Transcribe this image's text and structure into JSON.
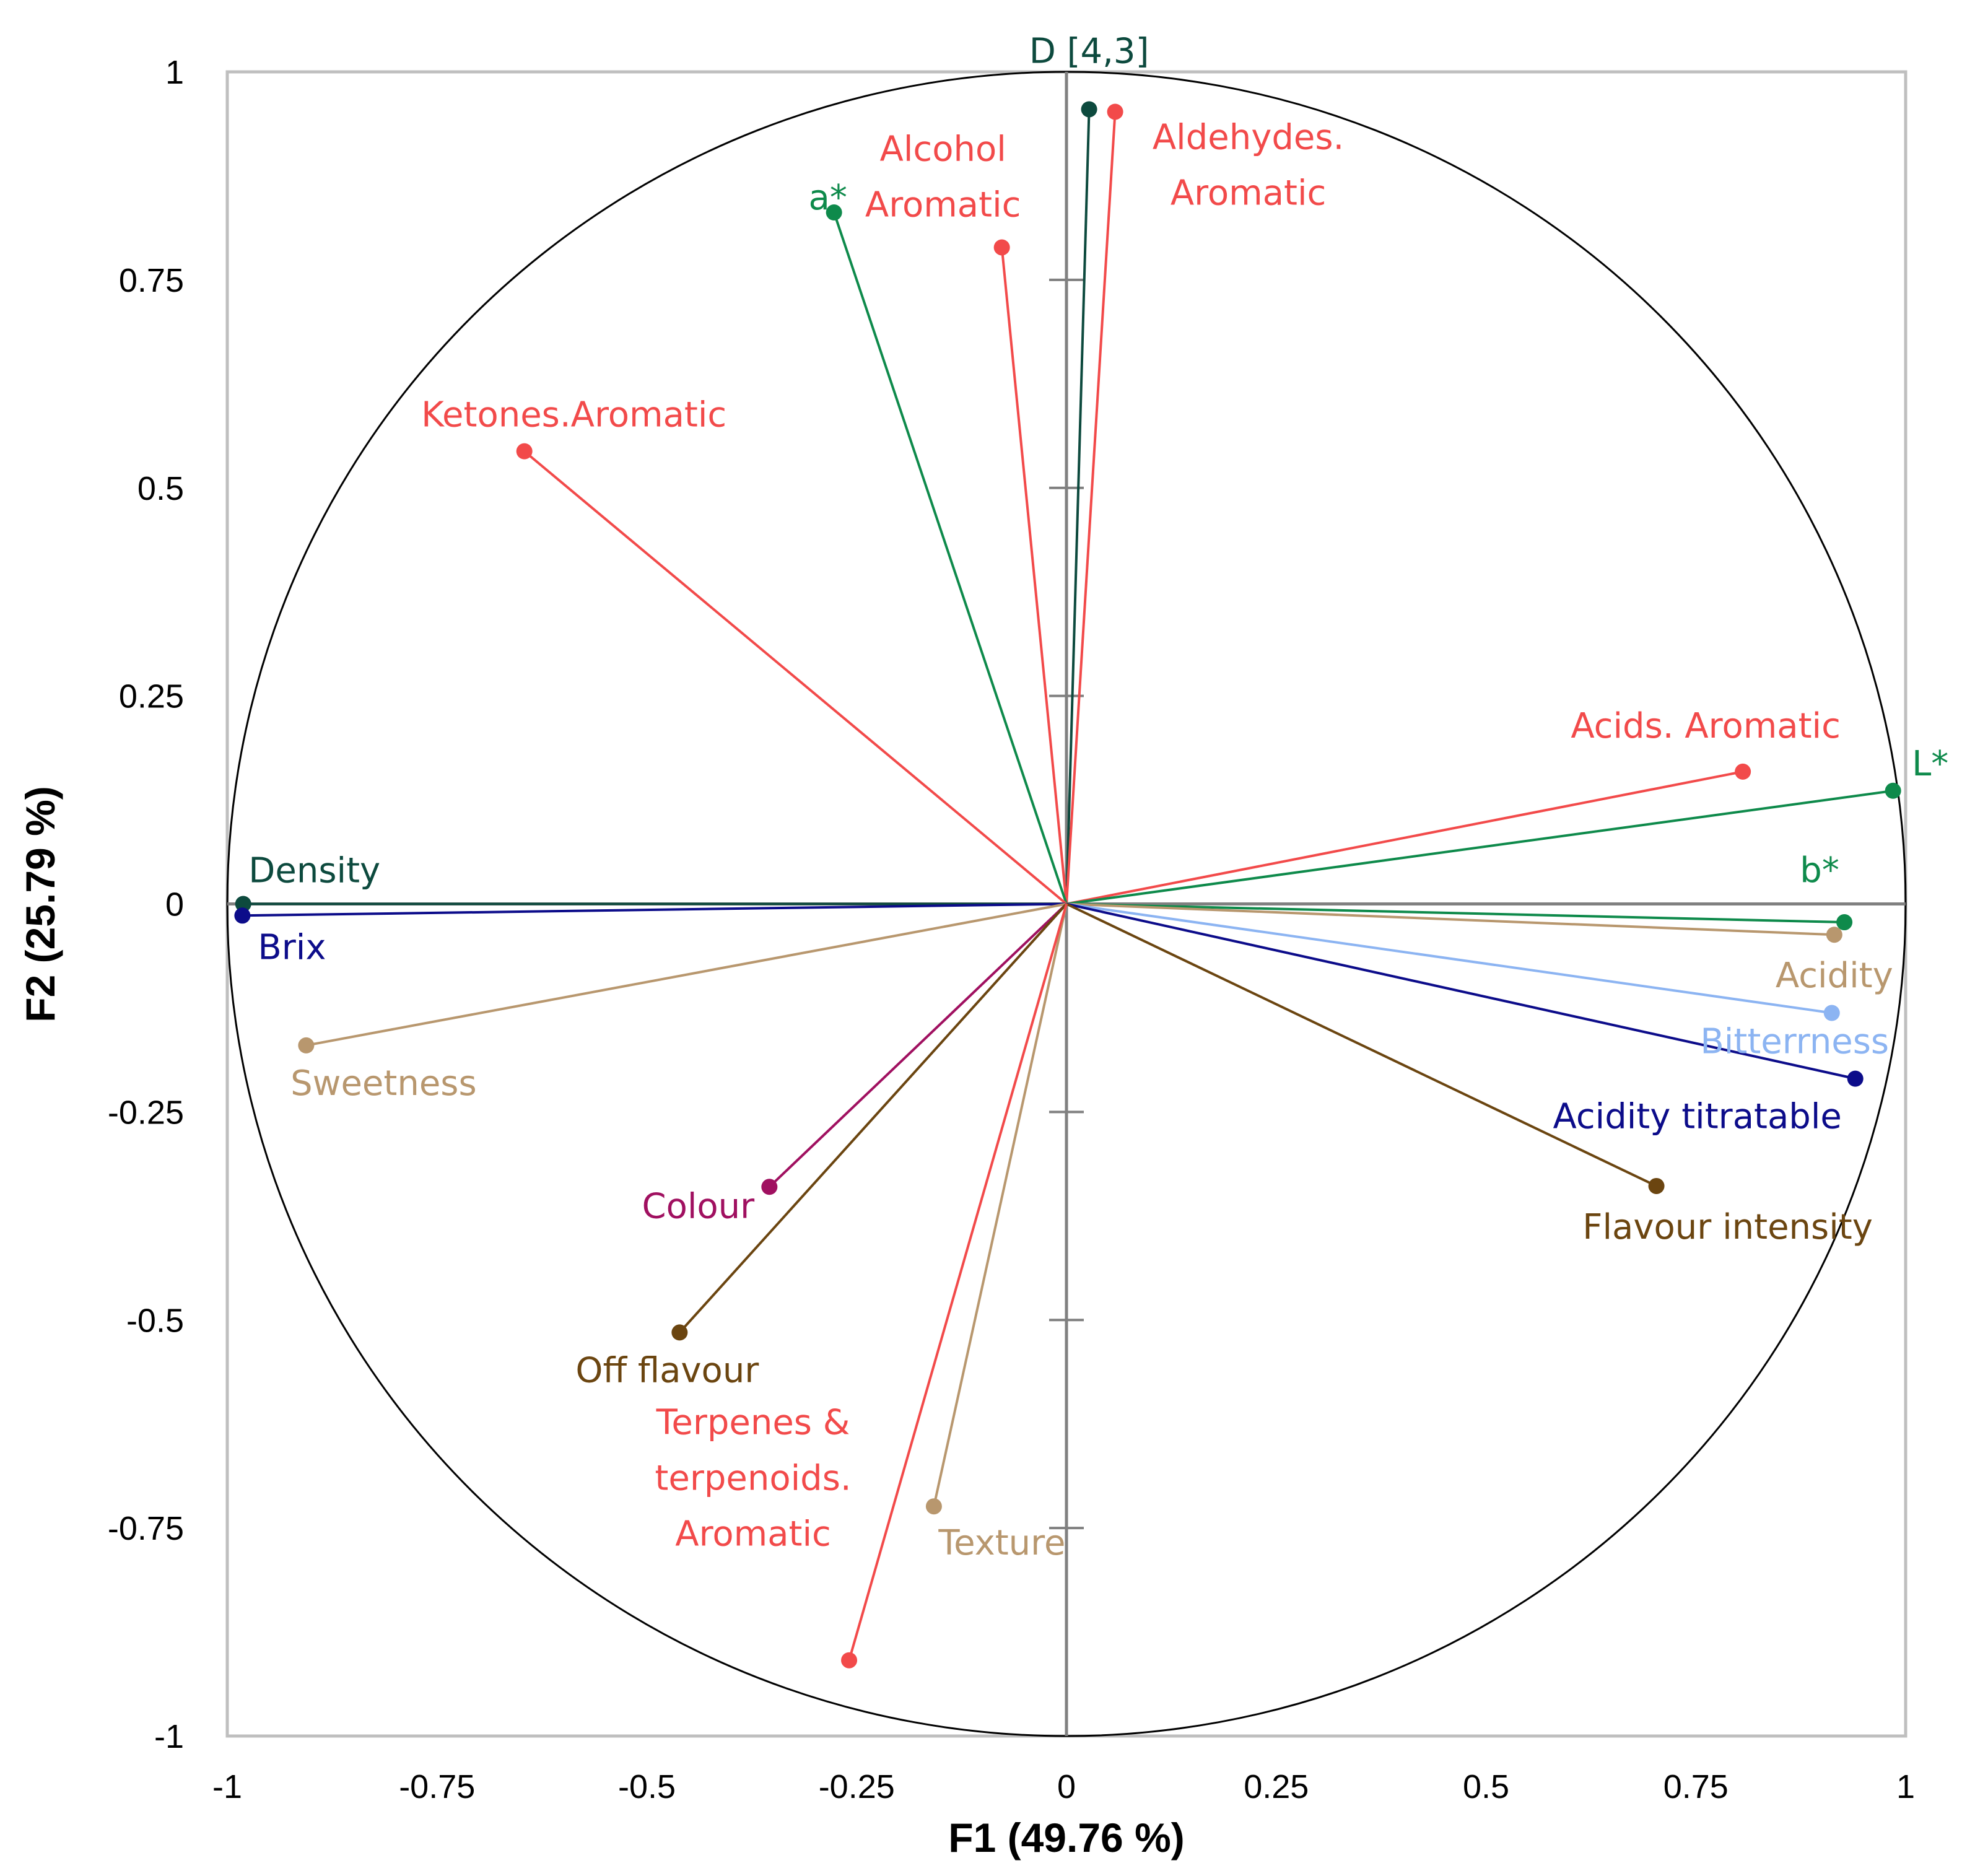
{
  "chart_data": {
    "type": "scatter",
    "subtype": "correlation-circle",
    "title": "",
    "xlabel": "F1 (49.76 %)",
    "ylabel": "F2 (25.79 %)",
    "xlim": [
      -1,
      1
    ],
    "ylim": [
      -1,
      1
    ],
    "xticks": [
      "-1",
      "-0.75",
      "-0.5",
      "-0.25",
      "0",
      "0.25",
      "0.5",
      "0.75",
      "1"
    ],
    "yticks": [
      "-1",
      "-0.75",
      "-0.5",
      "-0.25",
      "0",
      "0.25",
      "0.5",
      "0.75",
      "1"
    ],
    "grid": false,
    "unit_circle": true,
    "variables": [
      {
        "name": "D [4,3]",
        "x": 0.027,
        "y": 0.955,
        "color": "#0d4a3e",
        "label": [
          "D [4,3]"
        ]
      },
      {
        "name": "Aldehydes. Aromatic",
        "x": 0.058,
        "y": 0.952,
        "color": "#f24a4a",
        "label": [
          "Aldehydes.",
          "Aromatic"
        ]
      },
      {
        "name": "Alcohol Aromatic",
        "x": -0.077,
        "y": 0.789,
        "color": "#f24a4a",
        "label": [
          "Alcohol",
          "Aromatic"
        ]
      },
      {
        "name": "a*",
        "x": -0.277,
        "y": 0.831,
        "color": "#0e8a4b",
        "label": [
          "a*"
        ]
      },
      {
        "name": "Ketones.Aromatic",
        "x": -0.646,
        "y": 0.544,
        "color": "#f24a4a",
        "label": [
          "Ketones.Aromatic"
        ]
      },
      {
        "name": "Acids. Aromatic",
        "x": 0.806,
        "y": 0.159,
        "color": "#f24a4a",
        "label": [
          "Acids. Aromatic"
        ]
      },
      {
        "name": "L*",
        "x": 0.985,
        "y": 0.136,
        "color": "#0e8a4b",
        "label": [
          "L*"
        ]
      },
      {
        "name": "b*",
        "x": 0.927,
        "y": -0.022,
        "color": "#0e8a4b",
        "label": [
          "b*"
        ]
      },
      {
        "name": "Acidity",
        "x": 0.915,
        "y": -0.037,
        "color": "#b8976e",
        "label": [
          "Acidity"
        ]
      },
      {
        "name": "Bitterrness",
        "x": 0.912,
        "y": -0.131,
        "color": "#8cb4f2",
        "label": [
          "Bitterrness"
        ]
      },
      {
        "name": "Acidity titratable",
        "x": 0.94,
        "y": -0.21,
        "color": "#0c0c8a",
        "label": [
          "Acidity titratable"
        ]
      },
      {
        "name": "Flavour intensity",
        "x": 0.703,
        "y": -0.339,
        "color": "#6b4510",
        "label": [
          "Flavour intensity"
        ]
      },
      {
        "name": "Density",
        "x": -0.981,
        "y": 0.0,
        "color": "#0d4a3e",
        "label": [
          "Density"
        ]
      },
      {
        "name": "Brix",
        "x": -0.982,
        "y": -0.014,
        "color": "#0c0c8a",
        "label": [
          "Brix"
        ]
      },
      {
        "name": "Sweetness",
        "x": -0.906,
        "y": -0.17,
        "color": "#b8976e",
        "label": [
          "Sweetness"
        ]
      },
      {
        "name": "Colour",
        "x": -0.354,
        "y": -0.34,
        "color": "#a01060",
        "label": [
          "Colour"
        ]
      },
      {
        "name": "Off flavour",
        "x": -0.461,
        "y": -0.515,
        "color": "#6b4510",
        "label": [
          "Off flavour"
        ]
      },
      {
        "name": "Texture",
        "x": -0.158,
        "y": -0.724,
        "color": "#b8976e",
        "label": [
          "Texture"
        ]
      },
      {
        "name": "Terpenes & terpenoids. Aromatic",
        "x": -0.259,
        "y": -0.909,
        "color": "#f24a4a",
        "label": [
          "Terpenes &",
          "terpenoids.",
          "Aromatic"
        ]
      }
    ]
  }
}
